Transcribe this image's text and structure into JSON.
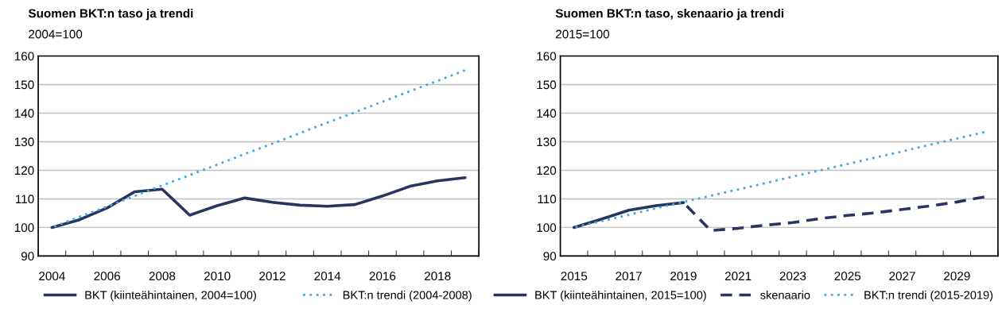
{
  "chart_data": [
    {
      "type": "line",
      "title": "Suomen BKT:n taso ja trendi",
      "subtitle": "2004=100",
      "categories": [
        "2004",
        null,
        "2006",
        null,
        "2008",
        null,
        "2010",
        null,
        "2012",
        null,
        "2014",
        null,
        "2016",
        null,
        "2018",
        null
      ],
      "ylim": [
        90,
        160
      ],
      "yticks": [
        90,
        100,
        110,
        120,
        130,
        140,
        150,
        160
      ],
      "grid": "y",
      "legend": "bottom",
      "marker": "none",
      "series": [
        {
          "name": "BKT (kiinteähintainen, 2004=100)",
          "color": "#263660",
          "line_style": "solid",
          "values": [
            100,
            102.7,
            106.8,
            112.5,
            113.4,
            104.3,
            107.6,
            110.3,
            108.8,
            107.8,
            107.4,
            108.0,
            111.0,
            114.4,
            116.3,
            117.4
          ]
        },
        {
          "name": "BKT:n trendi (2004-2008)",
          "color": "#41a8e6",
          "line_style": "dotted",
          "values": [
            100,
            103.7,
            107.3,
            111.0,
            114.7,
            118.3,
            122.0,
            125.7,
            129.3,
            133.0,
            136.7,
            140.3,
            144.0,
            147.7,
            151.3,
            155.0
          ]
        }
      ]
    },
    {
      "type": "line",
      "title": "Suomen BKT:n taso, skenaario ja trendi",
      "subtitle": "2015=100",
      "categories": [
        "2015",
        null,
        "2017",
        null,
        "2019",
        null,
        "2021",
        null,
        "2023",
        null,
        "2025",
        null,
        "2027",
        null,
        "2029",
        null
      ],
      "ylim": [
        90,
        160
      ],
      "yticks": [
        90,
        100,
        110,
        120,
        130,
        140,
        150,
        160
      ],
      "grid": "y",
      "legend": "bottom",
      "marker": "none",
      "series": [
        {
          "name": "BKT (kiinteähintainen, 2015=100)",
          "color": "#263660",
          "line_style": "solid",
          "values": [
            100,
            102.9,
            106.0,
            107.6,
            108.7,
            null,
            null,
            null,
            null,
            null,
            null,
            null,
            null,
            null,
            null,
            null
          ]
        },
        {
          "name": "skenaario",
          "color": "#263660",
          "line_style": "dashed",
          "values": [
            null,
            null,
            null,
            null,
            108.7,
            98.9,
            99.7,
            100.8,
            101.7,
            103.1,
            104.2,
            105.1,
            106.3,
            107.5,
            108.9,
            110.7
          ]
        },
        {
          "name": "BKT:n trendi (2015-2019)",
          "color": "#41a8e6",
          "line_style": "dotted",
          "values": [
            100,
            102.2,
            104.4,
            106.7,
            108.9,
            111.1,
            113.3,
            115.5,
            117.8,
            120.0,
            122.2,
            124.4,
            126.6,
            128.9,
            131.1,
            133.3
          ]
        }
      ]
    }
  ]
}
